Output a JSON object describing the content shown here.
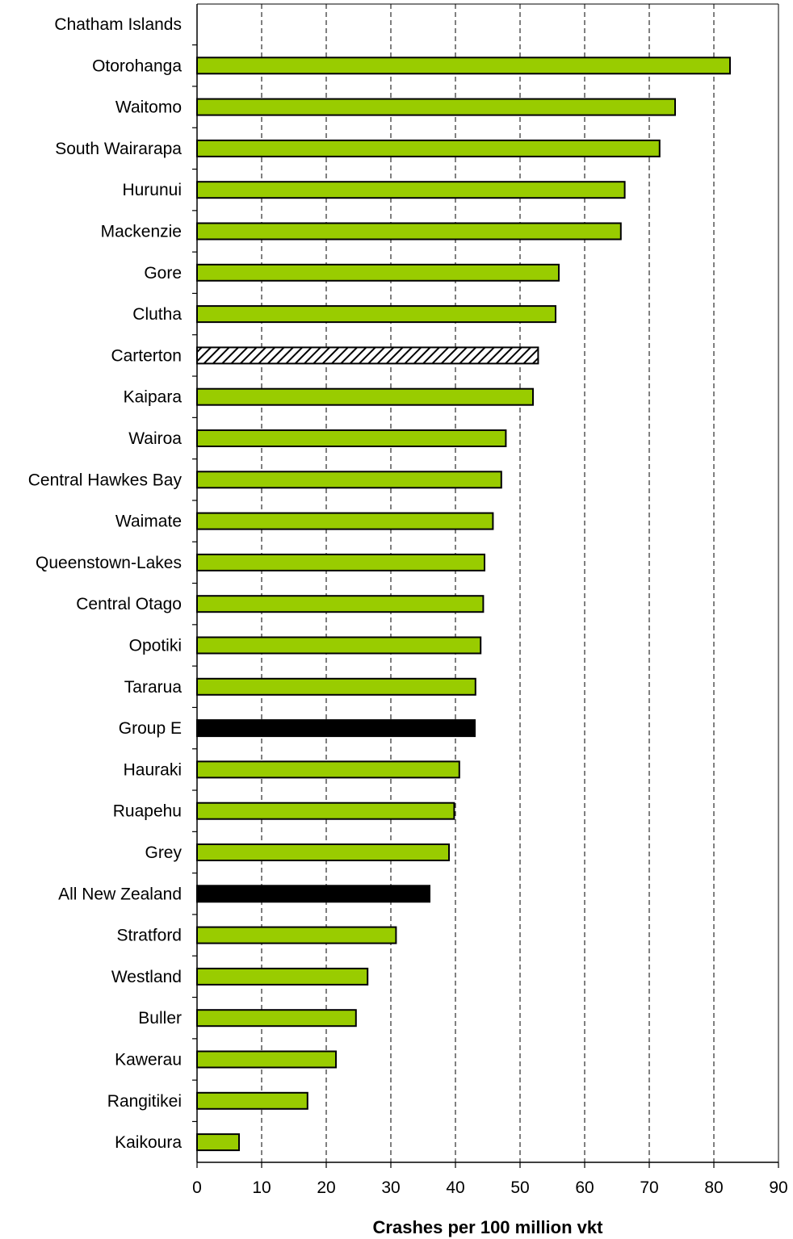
{
  "chart_data": {
    "type": "bar",
    "orientation": "horizontal",
    "title": "",
    "xlabel": "Crashes per 100 million vkt",
    "ylabel": "",
    "xlim": [
      0,
      90
    ],
    "xticks": [
      0,
      10,
      20,
      30,
      40,
      50,
      60,
      70,
      80,
      90
    ],
    "grid": "vertical dashed",
    "legend": "none",
    "colors": {
      "default": "#99cc00",
      "group": "#000000",
      "hatched": "#ffffff",
      "outline": "#000000"
    },
    "bars": [
      {
        "category": "Chatham Islands",
        "value": 0,
        "style": "default"
      },
      {
        "category": "Otorohanga",
        "value": 82.5,
        "style": "default"
      },
      {
        "category": "Waitomo",
        "value": 74,
        "style": "default"
      },
      {
        "category": "South Wairarapa",
        "value": 71.6,
        "style": "default"
      },
      {
        "category": "Hurunui",
        "value": 66.2,
        "style": "default"
      },
      {
        "category": "Mackenzie",
        "value": 65.6,
        "style": "default"
      },
      {
        "category": "Gore",
        "value": 56,
        "style": "default"
      },
      {
        "category": "Clutha",
        "value": 55.5,
        "style": "default"
      },
      {
        "category": "Carterton",
        "value": 52.8,
        "style": "hatched"
      },
      {
        "category": "Kaipara",
        "value": 52,
        "style": "default"
      },
      {
        "category": "Wairoa",
        "value": 47.8,
        "style": "default"
      },
      {
        "category": "Central Hawkes Bay",
        "value": 47.1,
        "style": "default"
      },
      {
        "category": "Waimate",
        "value": 45.8,
        "style": "default"
      },
      {
        "category": "Queenstown-Lakes",
        "value": 44.5,
        "style": "default"
      },
      {
        "category": "Central Otago",
        "value": 44.3,
        "style": "default"
      },
      {
        "category": "Opotiki",
        "value": 43.9,
        "style": "default"
      },
      {
        "category": "Tararua",
        "value": 43.1,
        "style": "default"
      },
      {
        "category": "Group E",
        "value": 43,
        "style": "group"
      },
      {
        "category": "Hauraki",
        "value": 40.6,
        "style": "default"
      },
      {
        "category": "Ruapehu",
        "value": 39.8,
        "style": "default"
      },
      {
        "category": "Grey",
        "value": 39,
        "style": "default"
      },
      {
        "category": "All New Zealand",
        "value": 36,
        "style": "group"
      },
      {
        "category": "Stratford",
        "value": 30.8,
        "style": "default"
      },
      {
        "category": "Westland",
        "value": 26.4,
        "style": "default"
      },
      {
        "category": "Buller",
        "value": 24.6,
        "style": "default"
      },
      {
        "category": "Kawerau",
        "value": 21.5,
        "style": "default"
      },
      {
        "category": "Rangitikei",
        "value": 17.1,
        "style": "default"
      },
      {
        "category": "Kaikoura",
        "value": 6.5,
        "style": "default"
      }
    ]
  }
}
